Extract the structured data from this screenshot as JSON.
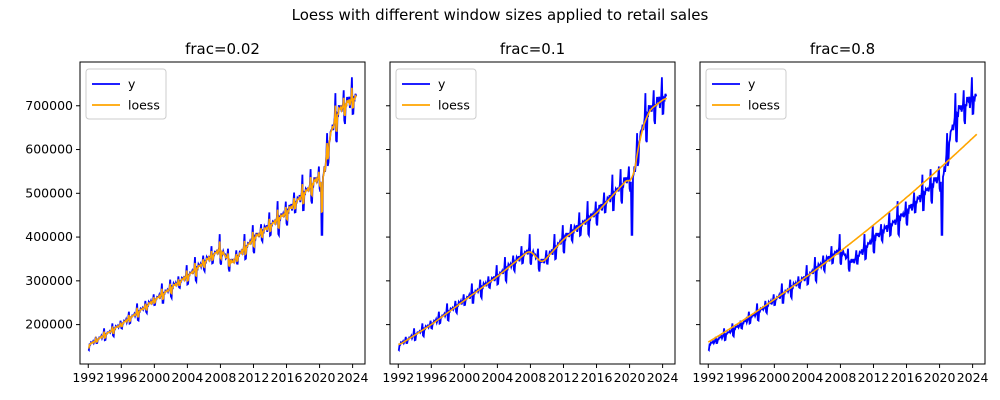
{
  "figure": {
    "title": "Loess with different window sizes applied to retail sales"
  },
  "chart_data": [
    {
      "type": "line",
      "title": "frac=0.02",
      "xlabel": "",
      "ylabel": "",
      "xlim": [
        1991,
        2025.5
      ],
      "ylim": [
        110000,
        800000
      ],
      "xticks": [
        "1992",
        "1996",
        "2000",
        "2004",
        "2008",
        "2012",
        "2016",
        "2020",
        "2024"
      ],
      "yticks": [
        "200000",
        "300000",
        "400000",
        "500000",
        "600000",
        "700000"
      ],
      "show_yticklabels": true,
      "legend": {
        "position": "upper-left",
        "entries": [
          "y",
          "loess"
        ]
      },
      "series": [
        {
          "name": "y",
          "color": "#0000ff",
          "role": "observed"
        },
        {
          "name": "loess",
          "color": "#ffa500",
          "role": "smooth",
          "frac": 0.02
        }
      ]
    },
    {
      "type": "line",
      "title": "frac=0.1",
      "xlabel": "",
      "ylabel": "",
      "xlim": [
        1991,
        2025.5
      ],
      "ylim": [
        110000,
        800000
      ],
      "xticks": [
        "1992",
        "1996",
        "2000",
        "2004",
        "2008",
        "2012",
        "2016",
        "2020",
        "2024"
      ],
      "yticks": [
        "200000",
        "300000",
        "400000",
        "500000",
        "600000",
        "700000"
      ],
      "show_yticklabels": false,
      "legend": {
        "position": "upper-left",
        "entries": [
          "y",
          "loess"
        ]
      },
      "series": [
        {
          "name": "y",
          "color": "#0000ff",
          "role": "observed"
        },
        {
          "name": "loess",
          "color": "#ffa500",
          "role": "smooth",
          "frac": 0.1
        }
      ]
    },
    {
      "type": "line",
      "title": "frac=0.8",
      "xlabel": "",
      "ylabel": "",
      "xlim": [
        1991,
        2025.5
      ],
      "ylim": [
        110000,
        800000
      ],
      "xticks": [
        "1992",
        "1996",
        "2000",
        "2004",
        "2008",
        "2012",
        "2016",
        "2020",
        "2024"
      ],
      "yticks": [
        "200000",
        "300000",
        "400000",
        "500000",
        "600000",
        "700000"
      ],
      "show_yticklabels": false,
      "legend": {
        "position": "upper-left",
        "entries": [
          "y",
          "loess"
        ]
      },
      "series": [
        {
          "name": "y",
          "color": "#0000ff",
          "role": "observed"
        },
        {
          "name": "loess",
          "color": "#ffa500",
          "role": "smooth",
          "frac": 0.8
        }
      ]
    }
  ],
  "retail_sales": {
    "start_year": 1992,
    "end_year": 2024.5,
    "trend_knots": [
      [
        1992,
        152000
      ],
      [
        1996,
        200000
      ],
      [
        2000,
        255000
      ],
      [
        2004,
        310000
      ],
      [
        2007.9,
        370000
      ],
      [
        2009.4,
        340000
      ],
      [
        2012,
        395000
      ],
      [
        2016,
        455000
      ],
      [
        2019.9,
        535000
      ],
      [
        2020.3,
        520000
      ],
      [
        2021.4,
        640000
      ],
      [
        2022.4,
        690000
      ],
      [
        2024.5,
        720000
      ]
    ],
    "lowfrac_fit_final": 635000,
    "notable_dips": [
      [
        2020.3,
        405000
      ]
    ],
    "notable_peaks": [
      [
        2023.9,
        765000
      ]
    ]
  }
}
